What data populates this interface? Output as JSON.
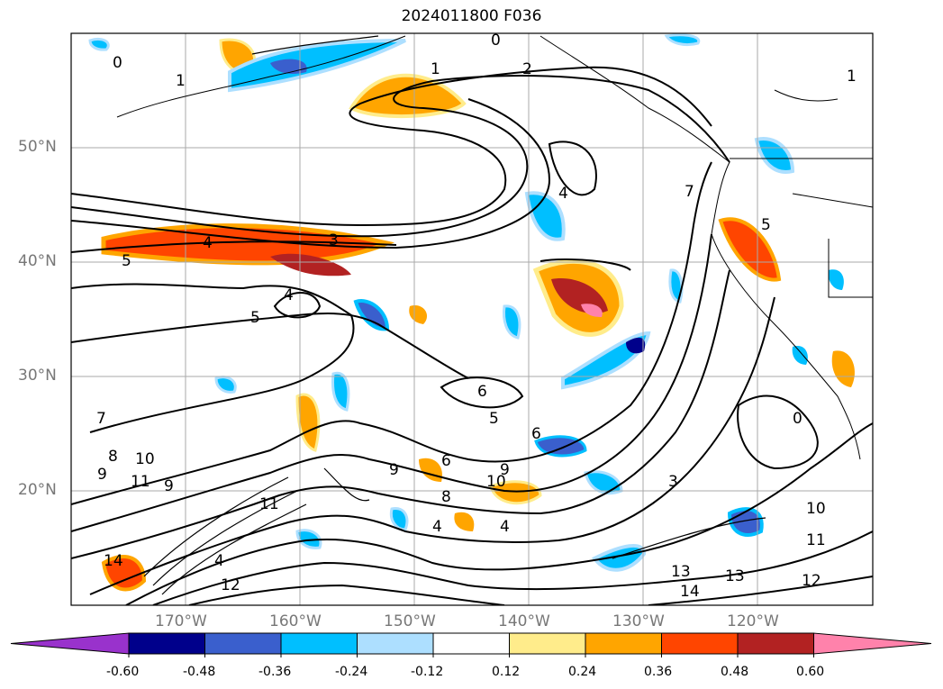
{
  "title": "2024011800 F036",
  "lat_labels": [
    "50°N",
    "40°N",
    "30°N",
    "20°N"
  ],
  "lon_labels": [
    "170°W",
    "160°W",
    "150°W",
    "140°W",
    "130°W",
    "120°W"
  ],
  "colorbar": {
    "colors": [
      "#9932CC",
      "#00008B",
      "#3A5FCD",
      "#00BFFF",
      "#ADDFFF",
      "#FFFFFF",
      "#FFEC8B",
      "#FFA500",
      "#FF4500",
      "#B22222",
      "#FF82AB"
    ],
    "labels": [
      "-0.60",
      "-0.48",
      "-0.36",
      "-0.24",
      "-0.12",
      "0.12",
      "0.24",
      "0.36",
      "0.48",
      "0.60"
    ]
  },
  "contour_labels": [
    "0",
    "1",
    "2",
    "4",
    "3",
    "5",
    "4",
    "5",
    "6",
    "7",
    "8",
    "9",
    "10",
    "11",
    "12",
    "13",
    "14"
  ]
}
